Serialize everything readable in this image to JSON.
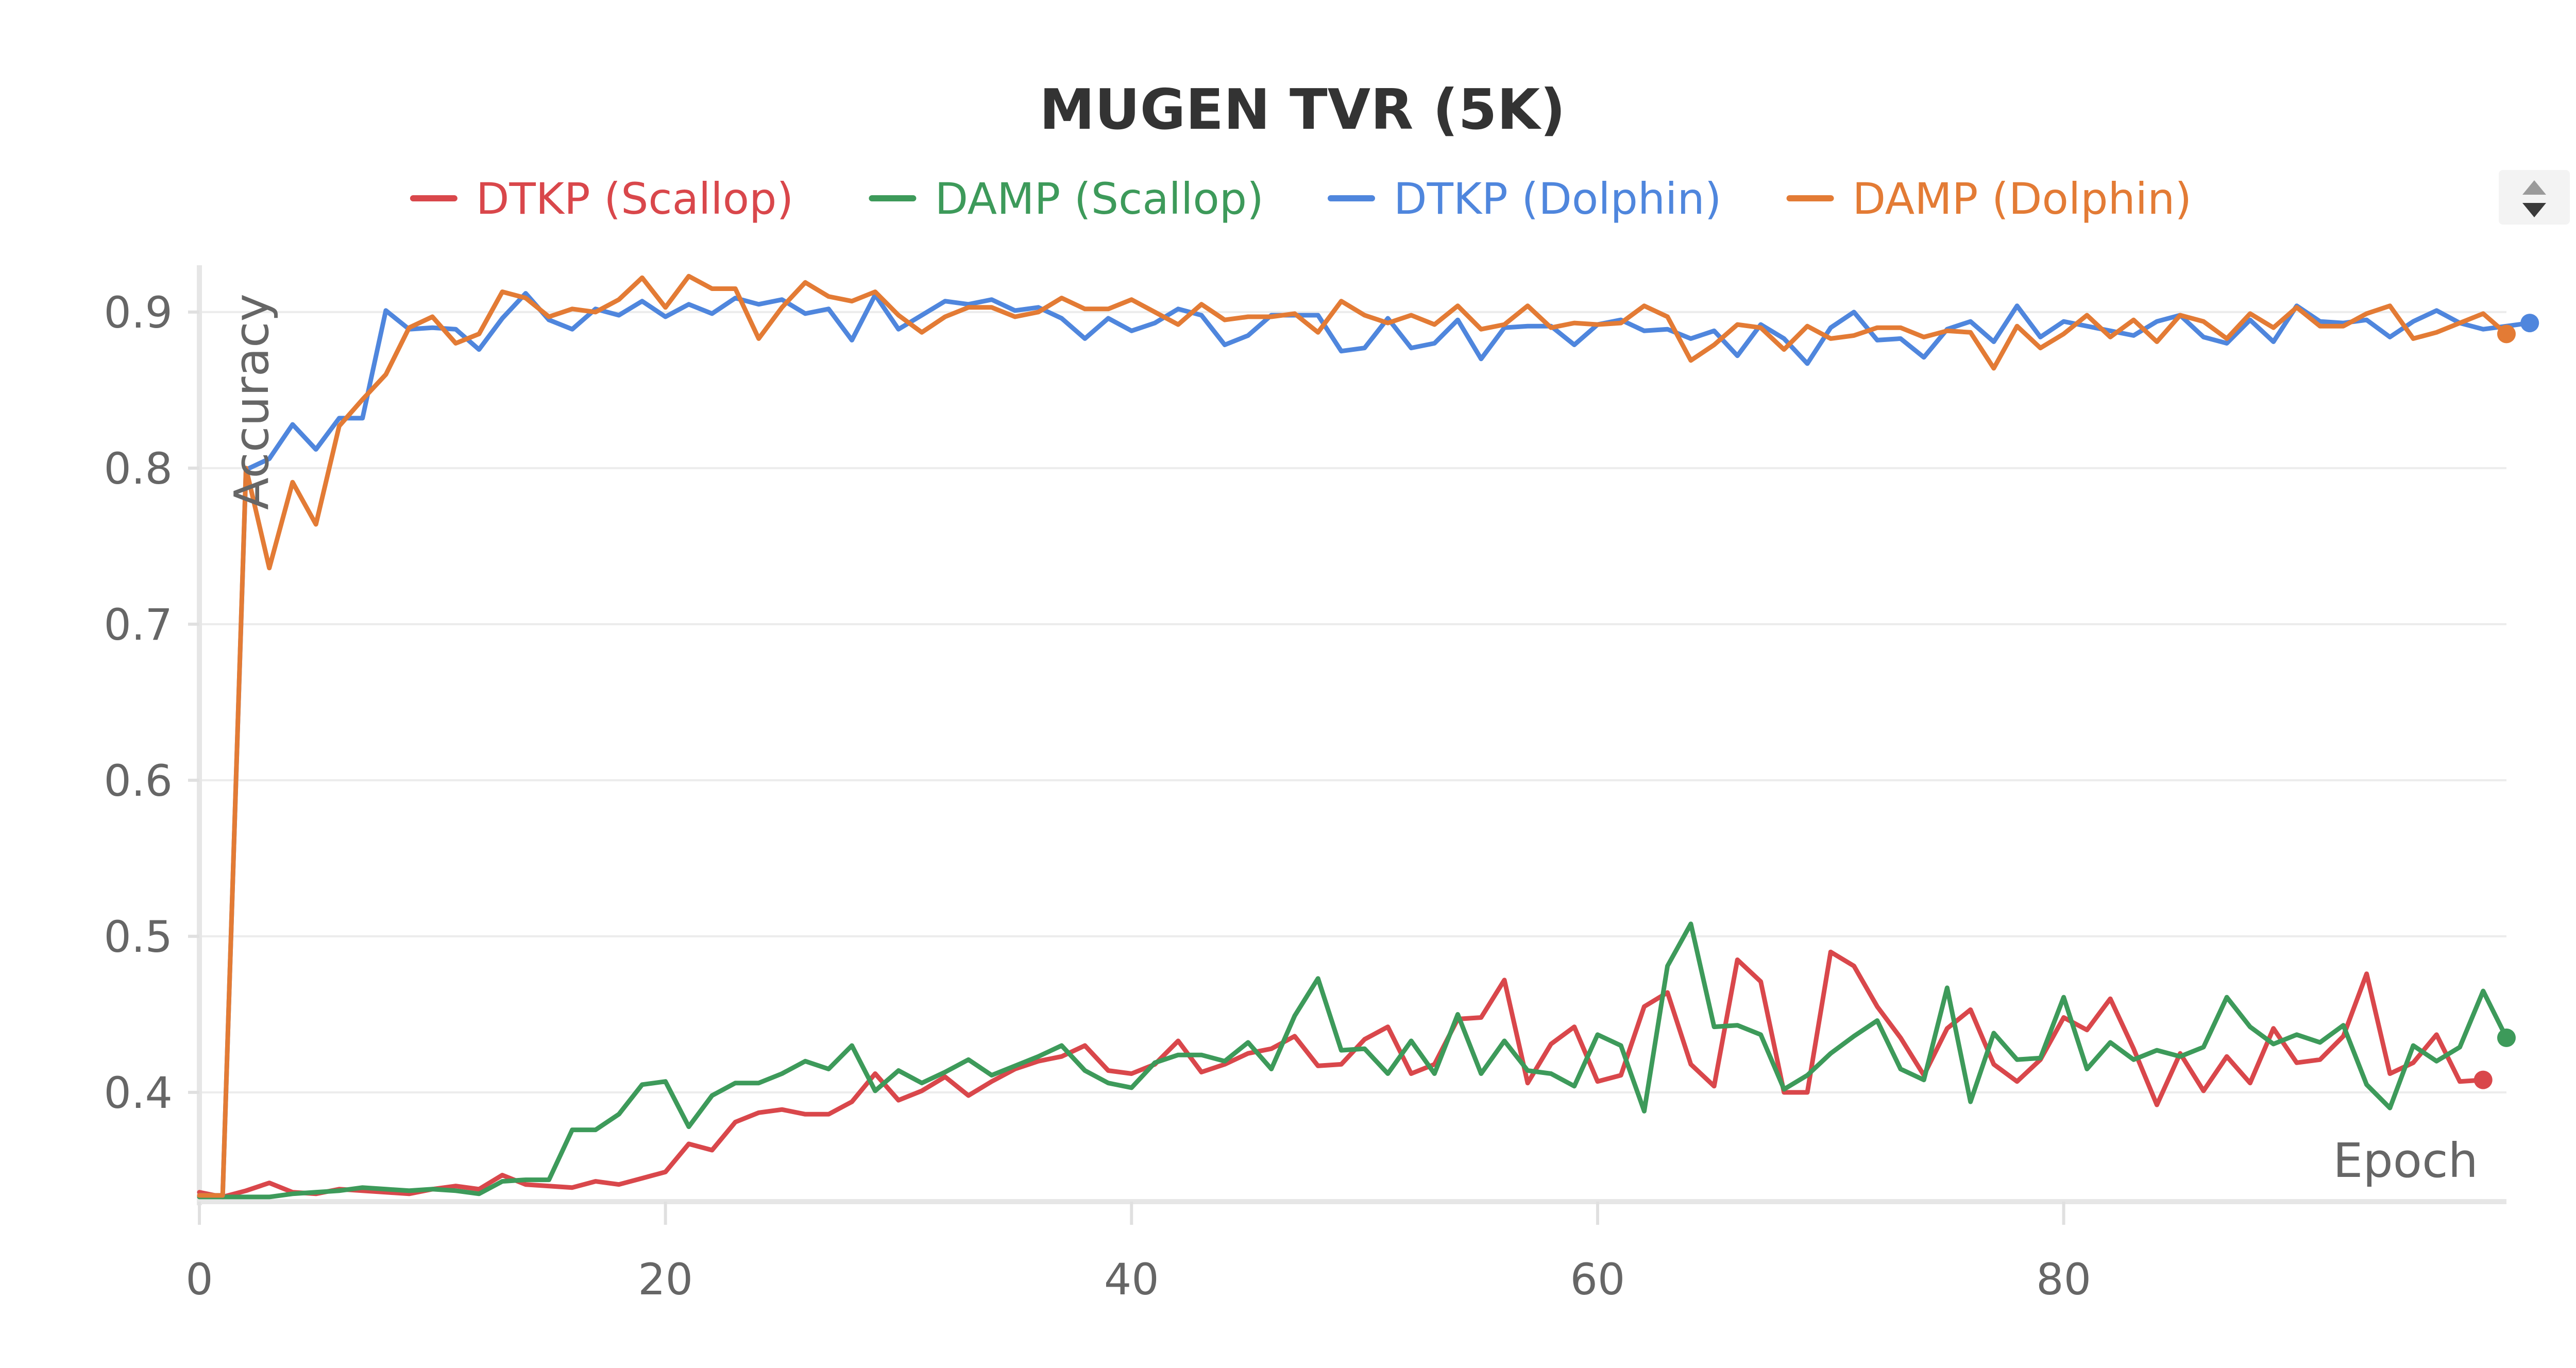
{
  "chart_data": {
    "type": "line",
    "title": "MUGEN TVR (5K)",
    "xlabel": "Epoch",
    "ylabel": "Accuracy",
    "xlim": [
      0,
      99
    ],
    "ylim": [
      0.33,
      0.93
    ],
    "xticks": [
      0,
      20,
      40,
      60,
      80
    ],
    "yticks": [
      0.4,
      0.5,
      0.6,
      0.7,
      0.8,
      0.9
    ],
    "xtick_labels": [
      "0",
      "20",
      "40",
      "60",
      "80"
    ],
    "ytick_labels": [
      "0.4",
      "0.5",
      "0.6",
      "0.7",
      "0.8",
      "0.9"
    ],
    "grid": true,
    "legend_position": "top-center",
    "series": [
      {
        "name": "DTKP (Scallop)",
        "color": "#d9474b",
        "values": [
          0.336,
          0.333,
          0.337,
          0.342,
          0.336,
          0.335,
          0.338,
          0.337,
          0.336,
          0.335,
          0.338,
          0.34,
          0.338,
          0.347,
          0.341,
          0.34,
          0.339,
          0.343,
          0.341,
          0.345,
          0.349,
          0.367,
          0.363,
          0.381,
          0.387,
          0.389,
          0.386,
          0.386,
          0.394,
          0.412,
          0.395,
          0.401,
          0.41,
          0.398,
          0.407,
          0.415,
          0.42,
          0.423,
          0.43,
          0.414,
          0.412,
          0.418,
          0.433,
          0.413,
          0.418,
          0.425,
          0.428,
          0.436,
          0.417,
          0.418,
          0.434,
          0.442,
          0.412,
          0.418,
          0.447,
          0.448,
          0.472,
          0.406,
          0.431,
          0.442,
          0.407,
          0.411,
          0.455,
          0.464,
          0.418,
          0.404,
          0.485,
          0.471,
          0.4,
          0.4,
          0.49,
          0.481,
          0.455,
          0.435,
          0.411,
          0.441,
          0.453,
          0.418,
          0.407,
          0.421,
          0.448,
          0.44,
          0.46,
          0.428,
          0.392,
          0.425,
          0.401,
          0.423,
          0.406,
          0.441,
          0.419,
          0.421,
          0.436,
          0.476,
          0.412,
          0.419,
          0.437,
          0.407,
          0.408
        ]
      },
      {
        "name": "DAMP (Scallop)",
        "color": "#3d9a5a",
        "values": [
          0.333,
          0.333,
          0.333,
          0.333,
          0.335,
          0.336,
          0.337,
          0.339,
          0.338,
          0.337,
          0.338,
          0.337,
          0.335,
          0.343,
          0.344,
          0.344,
          0.376,
          0.376,
          0.386,
          0.405,
          0.407,
          0.378,
          0.398,
          0.406,
          0.406,
          0.412,
          0.42,
          0.415,
          0.43,
          0.401,
          0.414,
          0.406,
          0.413,
          0.421,
          0.411,
          0.417,
          0.423,
          0.43,
          0.414,
          0.406,
          0.403,
          0.419,
          0.424,
          0.424,
          0.42,
          0.432,
          0.415,
          0.449,
          0.473,
          0.427,
          0.428,
          0.412,
          0.433,
          0.412,
          0.45,
          0.412,
          0.433,
          0.414,
          0.412,
          0.404,
          0.437,
          0.43,
          0.388,
          0.481,
          0.508,
          0.442,
          0.443,
          0.437,
          0.402,
          0.411,
          0.425,
          0.436,
          0.446,
          0.415,
          0.408,
          0.467,
          0.394,
          0.438,
          0.421,
          0.422,
          0.461,
          0.415,
          0.432,
          0.421,
          0.427,
          0.423,
          0.429,
          0.461,
          0.442,
          0.431,
          0.437,
          0.432,
          0.443,
          0.405,
          0.39,
          0.43,
          0.42,
          0.429,
          0.465,
          0.435
        ]
      },
      {
        "name": "DTKP (Dolphin)",
        "color": "#4f86dd",
        "values": [
          0.334,
          0.334,
          0.799,
          0.806,
          0.828,
          0.812,
          0.832,
          0.832,
          0.901,
          0.889,
          0.89,
          0.889,
          0.876,
          0.896,
          0.912,
          0.895,
          0.889,
          0.902,
          0.898,
          0.907,
          0.897,
          0.905,
          0.899,
          0.909,
          0.905,
          0.908,
          0.899,
          0.902,
          0.882,
          0.911,
          0.889,
          0.898,
          0.907,
          0.905,
          0.908,
          0.901,
          0.903,
          0.896,
          0.883,
          0.896,
          0.888,
          0.893,
          0.902,
          0.898,
          0.879,
          0.885,
          0.898,
          0.898,
          0.898,
          0.875,
          0.877,
          0.896,
          0.877,
          0.88,
          0.895,
          0.87,
          0.89,
          0.891,
          0.891,
          0.879,
          0.892,
          0.895,
          0.888,
          0.889,
          0.883,
          0.888,
          0.872,
          0.892,
          0.883,
          0.867,
          0.89,
          0.9,
          0.882,
          0.883,
          0.871,
          0.889,
          0.894,
          0.881,
          0.904,
          0.884,
          0.894,
          0.891,
          0.888,
          0.885,
          0.894,
          0.898,
          0.884,
          0.88,
          0.895,
          0.881,
          0.904,
          0.894,
          0.893,
          0.895,
          0.884,
          0.894,
          0.901,
          0.893,
          0.889,
          0.891,
          0.893
        ]
      },
      {
        "name": "DAMP (Dolphin)",
        "color": "#e37b35",
        "values": [
          0.334,
          0.334,
          0.8,
          0.736,
          0.791,
          0.764,
          0.827,
          0.844,
          0.86,
          0.89,
          0.897,
          0.88,
          0.886,
          0.913,
          0.909,
          0.897,
          0.902,
          0.9,
          0.908,
          0.922,
          0.903,
          0.923,
          0.915,
          0.915,
          0.883,
          0.903,
          0.919,
          0.91,
          0.907,
          0.913,
          0.898,
          0.887,
          0.897,
          0.903,
          0.903,
          0.897,
          0.9,
          0.909,
          0.902,
          0.902,
          0.908,
          0.9,
          0.892,
          0.905,
          0.895,
          0.897,
          0.897,
          0.899,
          0.887,
          0.907,
          0.898,
          0.893,
          0.898,
          0.892,
          0.904,
          0.889,
          0.892,
          0.904,
          0.89,
          0.893,
          0.892,
          0.893,
          0.904,
          0.897,
          0.869,
          0.879,
          0.892,
          0.89,
          0.876,
          0.891,
          0.883,
          0.885,
          0.89,
          0.89,
          0.884,
          0.888,
          0.887,
          0.864,
          0.891,
          0.877,
          0.886,
          0.898,
          0.884,
          0.895,
          0.881,
          0.898,
          0.894,
          0.883,
          0.899,
          0.89,
          0.903,
          0.891,
          0.891,
          0.899,
          0.904,
          0.883,
          0.887,
          0.893,
          0.899,
          0.886
        ]
      }
    ]
  }
}
